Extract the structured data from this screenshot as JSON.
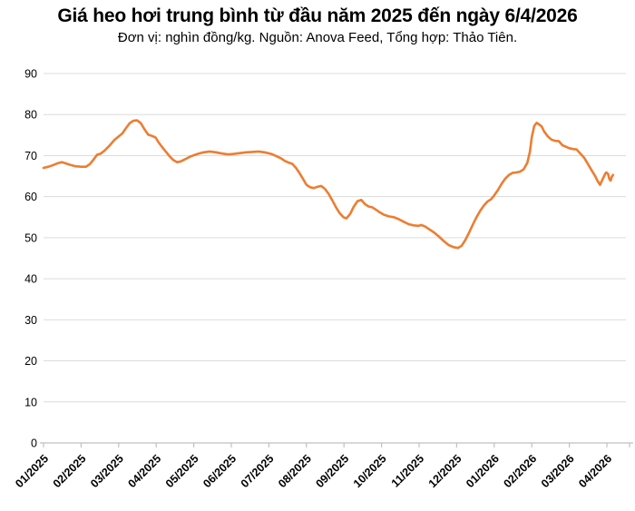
{
  "chart_data": {
    "type": "line",
    "title": "Giá heo hơi trung bình từ đầu năm 2025 đến ngày 6/4/2026",
    "subtitle": "Đơn vị: nghìn đồng/kg. Nguồn: Anova Feed, Tổng hợp: Thảo Tiên.",
    "unit": "nghìn đồng/kg",
    "source": "Anova Feed",
    "compiled_by": "Thảo Tiên",
    "ylim": [
      0,
      90
    ],
    "y_ticks": [
      0,
      10,
      20,
      30,
      40,
      50,
      60,
      70,
      80,
      90
    ],
    "x_tick_labels": [
      "01/2025",
      "02/2025",
      "03/2025",
      "04/2025",
      "05/2025",
      "06/2025",
      "07/2025",
      "08/2025",
      "09/2025",
      "10/2025",
      "11/2025",
      "12/2025",
      "01/2026",
      "02/2026",
      "03/2026",
      "04/2026"
    ],
    "grid": true,
    "legend": "none",
    "line_color": "#ED7D31",
    "gridline_color": "#DCDCDC",
    "axis_color": "#C0C0C0",
    "text_color": "#000000",
    "series": [
      {
        "name": "Giá heo hơi trung bình",
        "points": [
          [
            "2025-01-01",
            67.0
          ],
          [
            "2025-01-05",
            67.3
          ],
          [
            "2025-01-09",
            67.7
          ],
          [
            "2025-01-13",
            68.2
          ],
          [
            "2025-01-16",
            68.4
          ],
          [
            "2025-01-19",
            68.1
          ],
          [
            "2025-01-23",
            67.7
          ],
          [
            "2025-01-27",
            67.4
          ],
          [
            "2025-02-01",
            67.3
          ],
          [
            "2025-02-05",
            67.3
          ],
          [
            "2025-02-08",
            67.9
          ],
          [
            "2025-02-11",
            69.0
          ],
          [
            "2025-02-14",
            70.2
          ],
          [
            "2025-02-17",
            70.5
          ],
          [
            "2025-02-20",
            71.2
          ],
          [
            "2025-02-24",
            72.4
          ],
          [
            "2025-02-28",
            73.8
          ],
          [
            "2025-03-04",
            75.4
          ],
          [
            "2025-03-07",
            76.7
          ],
          [
            "2025-03-10",
            77.9
          ],
          [
            "2025-03-13",
            78.5
          ],
          [
            "2025-03-16",
            78.6
          ],
          [
            "2025-03-19",
            77.9
          ],
          [
            "2025-03-22",
            76.4
          ],
          [
            "2025-03-25",
            75.1
          ],
          [
            "2025-03-28",
            74.8
          ],
          [
            "2025-03-31",
            74.4
          ],
          [
            "2025-04-03",
            73.2
          ],
          [
            "2025-04-06",
            72.0
          ],
          [
            "2025-04-09",
            70.9
          ],
          [
            "2025-04-12",
            69.8
          ],
          [
            "2025-04-15",
            68.9
          ],
          [
            "2025-04-18",
            68.4
          ],
          [
            "2025-04-21",
            68.6
          ],
          [
            "2025-04-25",
            69.2
          ],
          [
            "2025-04-29",
            69.8
          ],
          [
            "2025-05-04",
            70.4
          ],
          [
            "2025-05-09",
            70.8
          ],
          [
            "2025-05-14",
            71.0
          ],
          [
            "2025-05-19",
            70.8
          ],
          [
            "2025-05-24",
            70.5
          ],
          [
            "2025-05-29",
            70.3
          ],
          [
            "2025-06-03",
            70.4
          ],
          [
            "2025-06-08",
            70.6
          ],
          [
            "2025-06-13",
            70.8
          ],
          [
            "2025-06-18",
            70.9
          ],
          [
            "2025-06-23",
            71.0
          ],
          [
            "2025-06-28",
            70.8
          ],
          [
            "2025-07-03",
            70.4
          ],
          [
            "2025-07-07",
            69.9
          ],
          [
            "2025-07-11",
            69.3
          ],
          [
            "2025-07-14",
            68.7
          ],
          [
            "2025-07-17",
            68.3
          ],
          [
            "2025-07-20",
            68.0
          ],
          [
            "2025-07-23",
            67.0
          ],
          [
            "2025-07-26",
            65.7
          ],
          [
            "2025-07-29",
            64.2
          ],
          [
            "2025-08-01",
            62.9
          ],
          [
            "2025-08-04",
            62.3
          ],
          [
            "2025-08-07",
            62.1
          ],
          [
            "2025-08-10",
            62.4
          ],
          [
            "2025-08-13",
            62.6
          ],
          [
            "2025-08-16",
            61.9
          ],
          [
            "2025-08-19",
            60.7
          ],
          [
            "2025-08-22",
            59.1
          ],
          [
            "2025-08-25",
            57.4
          ],
          [
            "2025-08-28",
            56.0
          ],
          [
            "2025-08-31",
            55.0
          ],
          [
            "2025-09-03",
            54.7
          ],
          [
            "2025-09-06",
            55.8
          ],
          [
            "2025-09-09",
            57.6
          ],
          [
            "2025-09-12",
            58.9
          ],
          [
            "2025-09-15",
            59.2
          ],
          [
            "2025-09-18",
            58.2
          ],
          [
            "2025-09-21",
            57.6
          ],
          [
            "2025-09-24",
            57.4
          ],
          [
            "2025-09-27",
            56.8
          ],
          [
            "2025-09-30",
            56.2
          ],
          [
            "2025-10-03",
            55.6
          ],
          [
            "2025-10-07",
            55.2
          ],
          [
            "2025-10-11",
            55.0
          ],
          [
            "2025-10-15",
            54.5
          ],
          [
            "2025-10-19",
            53.9
          ],
          [
            "2025-10-23",
            53.3
          ],
          [
            "2025-10-27",
            53.0
          ],
          [
            "2025-10-31",
            52.9
          ],
          [
            "2025-11-03",
            53.1
          ],
          [
            "2025-11-06",
            52.7
          ],
          [
            "2025-11-09",
            52.1
          ],
          [
            "2025-11-13",
            51.3
          ],
          [
            "2025-11-17",
            50.3
          ],
          [
            "2025-11-21",
            49.2
          ],
          [
            "2025-11-25",
            48.2
          ],
          [
            "2025-11-29",
            47.7
          ],
          [
            "2025-12-02",
            47.5
          ],
          [
            "2025-12-05",
            48.0
          ],
          [
            "2025-12-08",
            49.4
          ],
          [
            "2025-12-11",
            51.2
          ],
          [
            "2025-12-14",
            53.1
          ],
          [
            "2025-12-17",
            54.9
          ],
          [
            "2025-12-20",
            56.5
          ],
          [
            "2025-12-23",
            57.8
          ],
          [
            "2025-12-26",
            58.8
          ],
          [
            "2025-12-29",
            59.4
          ],
          [
            "2026-01-01",
            60.3
          ],
          [
            "2026-01-04",
            61.6
          ],
          [
            "2026-01-07",
            63.1
          ],
          [
            "2026-01-10",
            64.4
          ],
          [
            "2026-01-13",
            65.3
          ],
          [
            "2026-01-16",
            65.8
          ],
          [
            "2026-01-19",
            65.9
          ],
          [
            "2026-01-22",
            66.1
          ],
          [
            "2026-01-25",
            66.7
          ],
          [
            "2026-01-28",
            68.3
          ],
          [
            "2026-01-30",
            71.0
          ],
          [
            "2026-02-01",
            74.5
          ],
          [
            "2026-02-03",
            77.2
          ],
          [
            "2026-02-05",
            78.0
          ],
          [
            "2026-02-07",
            77.6
          ],
          [
            "2026-02-09",
            77.1
          ],
          [
            "2026-02-11",
            75.9
          ],
          [
            "2026-02-14",
            74.7
          ],
          [
            "2026-02-17",
            73.9
          ],
          [
            "2026-02-20",
            73.6
          ],
          [
            "2026-02-23",
            73.5
          ],
          [
            "2026-02-26",
            72.5
          ],
          [
            "2026-03-01",
            71.8
          ],
          [
            "2026-03-04",
            71.6
          ],
          [
            "2026-03-07",
            71.5
          ],
          [
            "2026-03-10",
            70.5
          ],
          [
            "2026-03-13",
            69.5
          ],
          [
            "2026-03-16",
            68.0
          ],
          [
            "2026-03-19",
            66.5
          ],
          [
            "2026-03-22",
            65.0
          ],
          [
            "2026-03-24",
            63.8
          ],
          [
            "2026-03-26",
            62.9
          ],
          [
            "2026-03-28",
            64.2
          ],
          [
            "2026-03-30",
            65.5
          ],
          [
            "2026-03-31",
            65.9
          ],
          [
            "2026-04-01",
            65.8
          ],
          [
            "2026-04-02",
            65.5
          ],
          [
            "2026-04-03",
            64.3
          ],
          [
            "2026-04-04",
            63.9
          ],
          [
            "2026-04-05",
            64.8
          ],
          [
            "2026-04-06",
            65.3
          ]
        ]
      }
    ]
  }
}
